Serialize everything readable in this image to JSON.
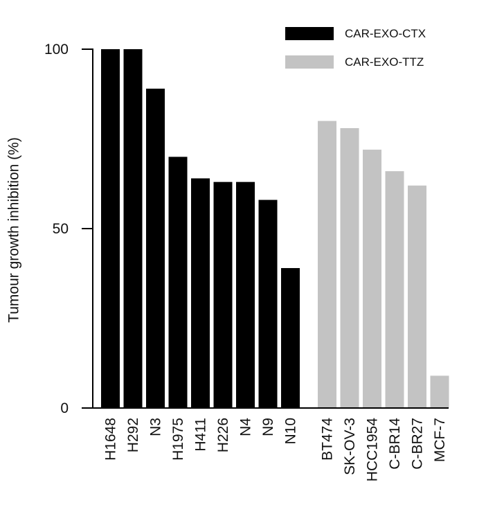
{
  "chart_data": {
    "type": "bar",
    "xlabel": "",
    "ylabel": "Tumour growth inhibition (%)",
    "ylim": [
      0,
      100
    ],
    "yticks": [
      0,
      50,
      100
    ],
    "grid": false,
    "legend_position": "top-right",
    "series": [
      {
        "name": "CAR-EXO-CTX",
        "color": "#000000",
        "categories": [
          "H1648",
          "H292",
          "N3",
          "H1975",
          "H411",
          "H226",
          "N4",
          "N9",
          "N10"
        ],
        "values": [
          100,
          100,
          89,
          70,
          64,
          63,
          63,
          58,
          39
        ]
      },
      {
        "name": "CAR-EXO-TTZ",
        "color": "#c3c3c3",
        "categories": [
          "BT474",
          "SK-OV-3",
          "HCC1954",
          "C-BR14",
          "C-BR27",
          "MCF-7"
        ],
        "values": [
          80,
          78,
          72,
          66,
          62,
          9
        ]
      }
    ]
  }
}
